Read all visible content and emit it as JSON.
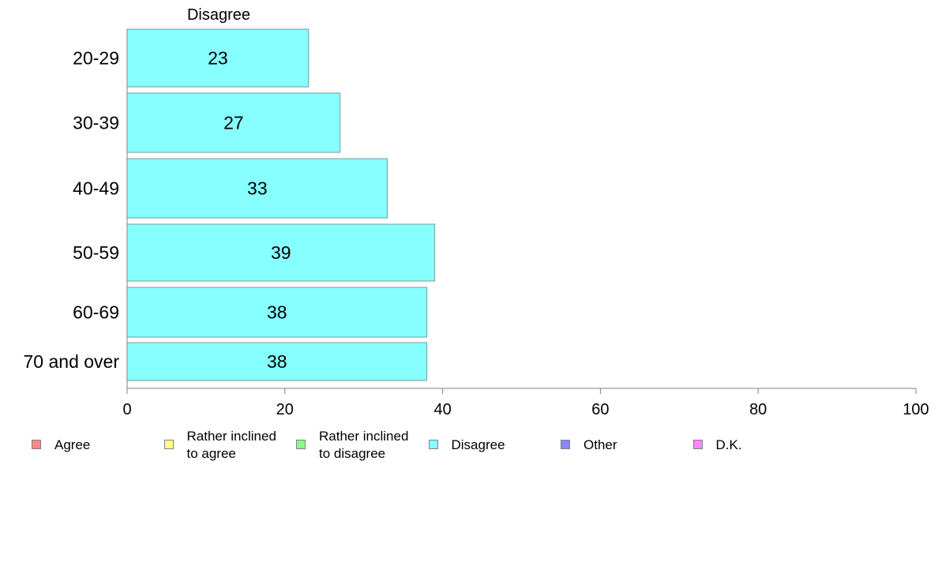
{
  "chart_data": {
    "type": "bar",
    "orientation": "horizontal",
    "title": "Disagree",
    "categories": [
      "20-29",
      "30-39",
      "40-49",
      "50-59",
      "60-69",
      "70 and over"
    ],
    "series": [
      {
        "name": "Disagree",
        "values": [
          23,
          27,
          33,
          39,
          38,
          38
        ],
        "color": "#88ffff"
      }
    ],
    "data_labels": [
      "23",
      "27",
      "33",
      "39",
      "38",
      "38"
    ],
    "xlim": [
      0,
      100
    ],
    "xticks": [
      0,
      20,
      40,
      60,
      80,
      100
    ],
    "xtick_labels": [
      "0",
      "20",
      "40",
      "60",
      "80",
      "100"
    ],
    "grid": false,
    "legend_position": "bottom",
    "legend": [
      {
        "label": "Agree",
        "color": "#ff8888"
      },
      {
        "label": "Rather inclined\nto agree",
        "color": "#ffff88"
      },
      {
        "label": "Rather inclined\nto disagree",
        "color": "#88ff88"
      },
      {
        "label": "Disagree",
        "color": "#88ffff"
      },
      {
        "label": "Other",
        "color": "#8888ff"
      },
      {
        "label": "D.K.",
        "color": "#ff88ff"
      }
    ]
  }
}
